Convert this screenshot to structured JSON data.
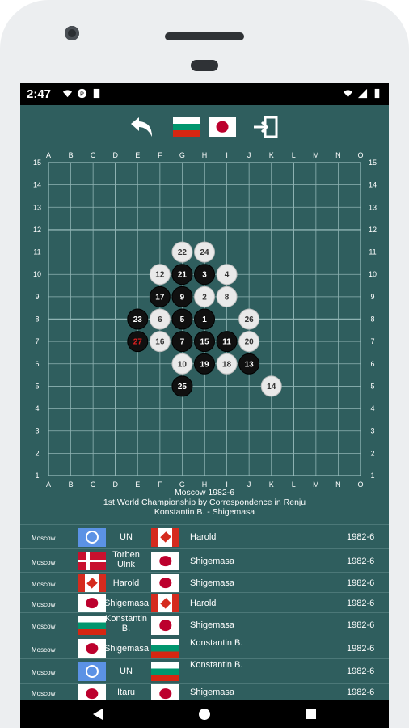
{
  "status": {
    "time": "2:47"
  },
  "toolbar": {
    "back_icon": "undo-arrow-icon",
    "flag_left": "bg",
    "flag_right": "jp",
    "exit_icon": "exit-icon"
  },
  "board": {
    "cols": [
      "A",
      "B",
      "C",
      "D",
      "E",
      "F",
      "G",
      "H",
      "I",
      "J",
      "K",
      "L",
      "M",
      "N",
      "O"
    ],
    "rows": [
      "15",
      "14",
      "13",
      "12",
      "11",
      "10",
      "9",
      "8",
      "7",
      "6",
      "5",
      "4",
      "3",
      "2",
      "1"
    ],
    "stones": [
      {
        "n": "1",
        "c": "H",
        "r": 8,
        "color": "black"
      },
      {
        "n": "2",
        "c": "H",
        "r": 9,
        "color": "white"
      },
      {
        "n": "3",
        "c": "H",
        "r": 10,
        "color": "black"
      },
      {
        "n": "4",
        "c": "I",
        "r": 10,
        "color": "white"
      },
      {
        "n": "5",
        "c": "G",
        "r": 8,
        "color": "black"
      },
      {
        "n": "6",
        "c": "F",
        "r": 8,
        "color": "white"
      },
      {
        "n": "7",
        "c": "G",
        "r": 7,
        "color": "black"
      },
      {
        "n": "8",
        "c": "I",
        "r": 9,
        "color": "white"
      },
      {
        "n": "9",
        "c": "G",
        "r": 9,
        "color": "black"
      },
      {
        "n": "10",
        "c": "G",
        "r": 6,
        "color": "white"
      },
      {
        "n": "11",
        "c": "I",
        "r": 7,
        "color": "black"
      },
      {
        "n": "12",
        "c": "F",
        "r": 10,
        "color": "white"
      },
      {
        "n": "13",
        "c": "J",
        "r": 6,
        "color": "black"
      },
      {
        "n": "14",
        "c": "K",
        "r": 5,
        "color": "white"
      },
      {
        "n": "15",
        "c": "H",
        "r": 7,
        "color": "black"
      },
      {
        "n": "16",
        "c": "F",
        "r": 7,
        "color": "white"
      },
      {
        "n": "17",
        "c": "F",
        "r": 9,
        "color": "black"
      },
      {
        "n": "18",
        "c": "I",
        "r": 6,
        "color": "white"
      },
      {
        "n": "19",
        "c": "H",
        "r": 6,
        "color": "black"
      },
      {
        "n": "20",
        "c": "J",
        "r": 7,
        "color": "white"
      },
      {
        "n": "21",
        "c": "G",
        "r": 10,
        "color": "black"
      },
      {
        "n": "22",
        "c": "G",
        "r": 11,
        "color": "white"
      },
      {
        "n": "23",
        "c": "E",
        "r": 8,
        "color": "black"
      },
      {
        "n": "24",
        "c": "H",
        "r": 11,
        "color": "white"
      },
      {
        "n": "25",
        "c": "G",
        "r": 5,
        "color": "black"
      },
      {
        "n": "26",
        "c": "J",
        "r": 8,
        "color": "white"
      },
      {
        "n": "27",
        "c": "E",
        "r": 7,
        "color": "black",
        "last": true
      }
    ]
  },
  "game_info": {
    "line1": "Moscow 1982-6",
    "line2": "1st World Championship by Correspondence in Renju",
    "line3": "Konstantin B. - Shigemasa"
  },
  "games": [
    {
      "place": "Moscow",
      "flag1": "un",
      "name1": "UN",
      "flag2": "ca",
      "name2": "Harold",
      "date": "1982-6"
    },
    {
      "place": "Moscow",
      "flag1": "dk",
      "name1": "Torben Ulrik",
      "flag2": "jp",
      "name2": "Shigemasa",
      "date": "1982-6"
    },
    {
      "place": "Moscow",
      "flag1": "ca",
      "name1": "Harold",
      "flag2": "jp",
      "name2": "Shigemasa",
      "date": "1982-6"
    },
    {
      "place": "Moscow",
      "flag1": "jp",
      "name1": "Shigemasa",
      "flag2": "ca",
      "name2": "Harold",
      "date": "1982-6"
    },
    {
      "place": "Moscow",
      "flag1": "bg",
      "name1": "Konstantin B.",
      "flag2": "jp",
      "name2": "Shigemasa",
      "date": "1982-6"
    },
    {
      "place": "Moscow",
      "flag1": "jp",
      "name1": "Shigemasa",
      "flag2": "bg",
      "name2": "Konstantin B.",
      "date": "1982-6"
    },
    {
      "place": "Moscow",
      "flag1": "un",
      "name1": "UN",
      "flag2": "bg",
      "name2": "Konstantin B.",
      "date": "1982-6"
    },
    {
      "place": "Moscow",
      "flag1": "jp",
      "name1": "Itaru",
      "flag2": "jp",
      "name2": "Shigemasa",
      "date": "1982-6"
    }
  ],
  "nav": {
    "back": "back-triangle-icon",
    "home": "home-circle-icon",
    "recents": "recents-square-icon"
  }
}
